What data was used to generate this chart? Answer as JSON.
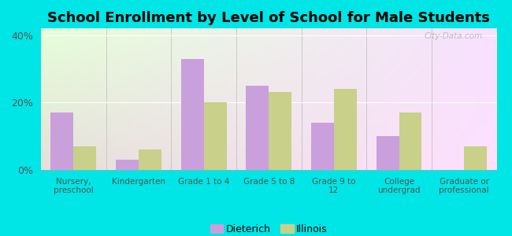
{
  "title": "School Enrollment by Level of School for Male Students",
  "categories": [
    "Nursery,\npreschool",
    "Kindergarten",
    "Grade 1 to 4",
    "Grade 5 to 8",
    "Grade 9 to\n12",
    "College\nundergrad",
    "Graduate or\nprofessional"
  ],
  "dieterich_values": [
    17.0,
    3.0,
    33.0,
    25.0,
    14.0,
    10.0,
    0.0
  ],
  "illinois_values": [
    7.0,
    6.0,
    20.0,
    23.0,
    24.0,
    17.0,
    7.0
  ],
  "dieterich_color": "#c9a0dc",
  "illinois_color": "#c8d08a",
  "background_color": "#00e5e5",
  "ylim": [
    0,
    42
  ],
  "yticks": [
    0,
    20,
    40
  ],
  "ytick_labels": [
    "0%",
    "20%",
    "40%"
  ],
  "bar_width": 0.35,
  "title_fontsize": 13,
  "legend_labels": [
    "Dieterich",
    "Illinois"
  ],
  "watermark": "City-Data.com"
}
